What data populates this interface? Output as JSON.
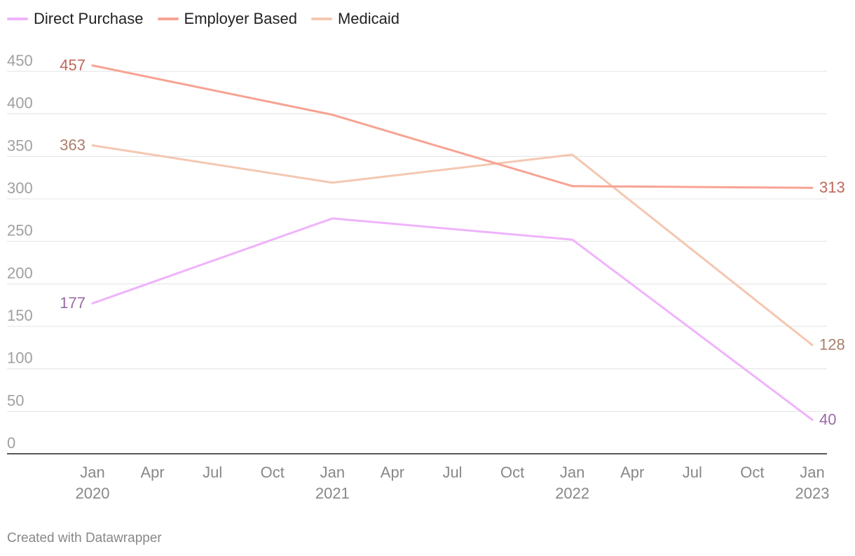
{
  "chart_data": {
    "type": "line",
    "title": "",
    "xlabel": "",
    "ylabel": "",
    "ylim": [
      0,
      450
    ],
    "y_ticks": [
      0,
      50,
      100,
      150,
      200,
      250,
      300,
      350,
      400,
      450
    ],
    "x_domain": [
      "2020-01",
      "2023-01"
    ],
    "x_ticks": [
      {
        "date": "2020-01",
        "label": "Jan",
        "year": "2020"
      },
      {
        "date": "2020-04",
        "label": "Apr",
        "year": ""
      },
      {
        "date": "2020-07",
        "label": "Jul",
        "year": ""
      },
      {
        "date": "2020-10",
        "label": "Oct",
        "year": ""
      },
      {
        "date": "2021-01",
        "label": "Jan",
        "year": "2021"
      },
      {
        "date": "2021-04",
        "label": "Apr",
        "year": ""
      },
      {
        "date": "2021-07",
        "label": "Jul",
        "year": ""
      },
      {
        "date": "2021-10",
        "label": "Oct",
        "year": ""
      },
      {
        "date": "2022-01",
        "label": "Jan",
        "year": "2022"
      },
      {
        "date": "2022-04",
        "label": "Apr",
        "year": ""
      },
      {
        "date": "2022-07",
        "label": "Jul",
        "year": ""
      },
      {
        "date": "2022-10",
        "label": "Oct",
        "year": ""
      },
      {
        "date": "2023-01",
        "label": "Jan",
        "year": "2023"
      }
    ],
    "series": [
      {
        "name": "Direct Purchase",
        "color": "#efb3fb",
        "label_color": "#9b6aa6",
        "x": [
          "2020-01",
          "2021-01",
          "2022-01",
          "2023-01"
        ],
        "values": [
          177,
          277,
          252,
          40
        ],
        "start_label": "177",
        "end_label": "40"
      },
      {
        "name": "Employer Based",
        "color": "#f7a393",
        "label_color": "#c0675a",
        "x": [
          "2020-01",
          "2021-01",
          "2022-01",
          "2023-01"
        ],
        "values": [
          457,
          399,
          315,
          313
        ],
        "start_label": "457",
        "end_label": "313"
      },
      {
        "name": "Medicaid",
        "color": "#f4c7b1",
        "label_color": "#a87e6c",
        "x": [
          "2020-01",
          "2021-01",
          "2022-01",
          "2023-01"
        ],
        "values": [
          363,
          319,
          352,
          128
        ],
        "start_label": "363",
        "end_label": "128"
      }
    ],
    "legend_position": "top-left",
    "grid": true
  },
  "credit": "Created with Datawrapper"
}
